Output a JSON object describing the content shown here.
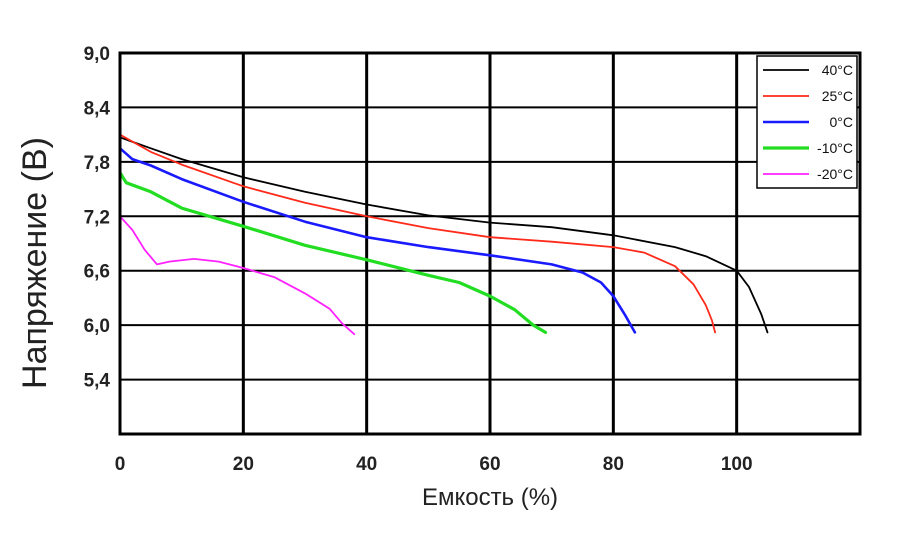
{
  "chart_data": {
    "type": "line",
    "xlabel": "Емкость (%)",
    "ylabel": "Напряжение (В)",
    "xlim": [
      0,
      120
    ],
    "ylim": [
      4.8,
      9.0
    ],
    "x_ticks": [
      "0",
      "20",
      "40",
      "60",
      "80",
      "100"
    ],
    "y_ticks": [
      "9,0",
      "8,4",
      "7,8",
      "7,2",
      "6,6",
      "6,0",
      "5,4"
    ],
    "grid": true,
    "legend_position": "top-right",
    "series": [
      {
        "name": "40°C",
        "color": "#000000",
        "points": [
          [
            0,
            8.07
          ],
          [
            5,
            7.95
          ],
          [
            10,
            7.83
          ],
          [
            20,
            7.63
          ],
          [
            30,
            7.47
          ],
          [
            40,
            7.33
          ],
          [
            50,
            7.21
          ],
          [
            60,
            7.13
          ],
          [
            70,
            7.08
          ],
          [
            80,
            6.99
          ],
          [
            90,
            6.86
          ],
          [
            95,
            6.76
          ],
          [
            100,
            6.6
          ],
          [
            102,
            6.42
          ],
          [
            104,
            6.12
          ],
          [
            105,
            5.92
          ]
        ]
      },
      {
        "name": "25°C",
        "color": "#ff2a1a",
        "points": [
          [
            0,
            8.1
          ],
          [
            5,
            7.91
          ],
          [
            10,
            7.77
          ],
          [
            20,
            7.53
          ],
          [
            30,
            7.35
          ],
          [
            40,
            7.2
          ],
          [
            50,
            7.07
          ],
          [
            60,
            6.97
          ],
          [
            70,
            6.92
          ],
          [
            80,
            6.86
          ],
          [
            85,
            6.8
          ],
          [
            90,
            6.65
          ],
          [
            93,
            6.45
          ],
          [
            95,
            6.22
          ],
          [
            96,
            6.05
          ],
          [
            96.5,
            5.92
          ]
        ]
      },
      {
        "name": "0°C",
        "color": "#1a1aff",
        "points": [
          [
            0,
            7.95
          ],
          [
            2,
            7.83
          ],
          [
            5,
            7.76
          ],
          [
            10,
            7.61
          ],
          [
            20,
            7.36
          ],
          [
            30,
            7.14
          ],
          [
            40,
            6.97
          ],
          [
            50,
            6.86
          ],
          [
            60,
            6.77
          ],
          [
            70,
            6.67
          ],
          [
            75,
            6.58
          ],
          [
            78,
            6.47
          ],
          [
            80,
            6.32
          ],
          [
            82,
            6.1
          ],
          [
            83.5,
            5.92
          ]
        ]
      },
      {
        "name": "-10°C",
        "color": "#22dd22",
        "points": [
          [
            0,
            7.68
          ],
          [
            1,
            7.57
          ],
          [
            5,
            7.47
          ],
          [
            10,
            7.29
          ],
          [
            20,
            7.09
          ],
          [
            30,
            6.88
          ],
          [
            40,
            6.72
          ],
          [
            50,
            6.55
          ],
          [
            55,
            6.47
          ],
          [
            60,
            6.32
          ],
          [
            64,
            6.17
          ],
          [
            67,
            6.0
          ],
          [
            69,
            5.92
          ]
        ]
      },
      {
        "name": "-20°C",
        "color": "#ff22ff",
        "points": [
          [
            0,
            7.2
          ],
          [
            2,
            7.05
          ],
          [
            4,
            6.83
          ],
          [
            6,
            6.67
          ],
          [
            8,
            6.7
          ],
          [
            12,
            6.73
          ],
          [
            16,
            6.7
          ],
          [
            20,
            6.63
          ],
          [
            25,
            6.53
          ],
          [
            30,
            6.35
          ],
          [
            34,
            6.18
          ],
          [
            36,
            6.02
          ],
          [
            38,
            5.9
          ]
        ]
      }
    ]
  }
}
